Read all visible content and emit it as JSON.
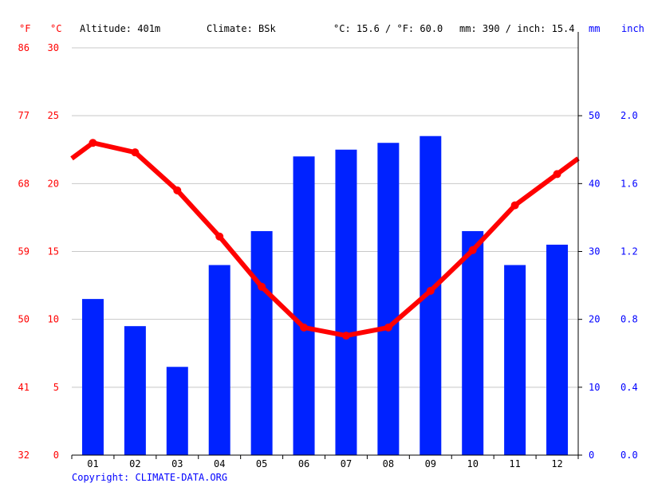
{
  "header": {
    "unit_f": "°F",
    "unit_c": "°C",
    "altitude": "Altitude: 401m",
    "climate": "Climate: BSk",
    "temp_summary": "°C: 15.6 / °F: 60.0",
    "precip_summary": "mm: 390 / inch: 15.4",
    "unit_mm": "mm",
    "unit_inch": "inch"
  },
  "copyright": "Copyright: CLIMATE-DATA.ORG",
  "colors": {
    "temperature": "#ff0000",
    "precipitation": "#0022ff",
    "gridline": "#c8c8c8",
    "axis_right": "#0000ff"
  },
  "chart_data": {
    "type": "bar",
    "categories": [
      "01",
      "02",
      "03",
      "04",
      "05",
      "06",
      "07",
      "08",
      "09",
      "10",
      "11",
      "12"
    ],
    "series": [
      {
        "type": "bar",
        "axis": "right",
        "unit": "mm",
        "values": [
          23,
          19,
          13,
          28,
          33,
          44,
          45,
          46,
          47,
          33,
          28,
          31
        ]
      },
      {
        "type": "line",
        "axis": "left",
        "unit": "°C",
        "values": [
          23.0,
          22.3,
          19.5,
          16.1,
          12.4,
          9.4,
          8.8,
          9.4,
          12.1,
          15.1,
          18.4,
          20.7
        ]
      }
    ],
    "y_left_c": {
      "ticks": [
        "0",
        "5",
        "10",
        "15",
        "20",
        "25",
        "30"
      ],
      "range": [
        0,
        30
      ]
    },
    "y_left_f": {
      "ticks": [
        "32",
        "41",
        "50",
        "59",
        "68",
        "77",
        "86"
      ]
    },
    "y_right_mm": {
      "ticks": [
        "0",
        "10",
        "20",
        "30",
        "40",
        "50"
      ],
      "range": [
        0,
        60
      ]
    },
    "y_right_inch": {
      "ticks": [
        "0.0",
        "0.4",
        "0.8",
        "1.2",
        "1.6",
        "2.0"
      ]
    },
    "grid": true
  }
}
